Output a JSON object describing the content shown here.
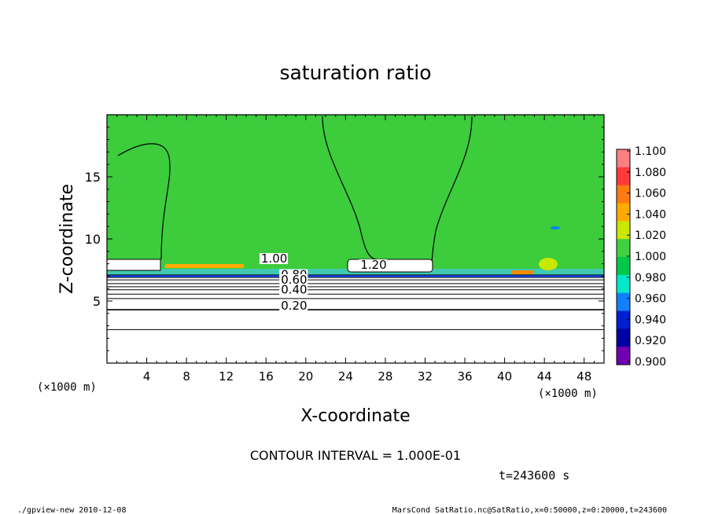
{
  "chart_data": {
    "type": "heatmap",
    "title": "saturation ratio",
    "xlabel": "X-coordinate",
    "ylabel": "Z-coordinate",
    "x_unit": "(×1000 m)",
    "y_unit": "(×1000 m)",
    "xlim": [
      0,
      50
    ],
    "ylim": [
      0,
      20
    ],
    "x_ticks": [
      "4",
      "8",
      "12",
      "16",
      "20",
      "24",
      "28",
      "32",
      "36",
      "40",
      "44",
      "48"
    ],
    "x_tick_values": [
      4,
      8,
      12,
      16,
      20,
      24,
      28,
      32,
      36,
      40,
      44,
      48
    ],
    "y_ticks": [
      "5",
      "10",
      "15"
    ],
    "y_tick_values": [
      5,
      10,
      15
    ],
    "colorbar": {
      "labels": [
        "1.100",
        "1.080",
        "1.060",
        "1.040",
        "1.020",
        "1.000",
        "0.980",
        "0.960",
        "0.940",
        "0.920",
        "0.900"
      ],
      "colors": [
        "#ff7f7f",
        "#ff3a3a",
        "#ff7a10",
        "#ffaa00",
        "#c8e800",
        "#40d040",
        "#00c848",
        "#00e8c8",
        "#1080ff",
        "#0020d0",
        "#0000a0",
        "#7000b0"
      ]
    },
    "background_color": "#3ccc3c",
    "contour_labels": [
      {
        "text": "1.00",
        "x": 15.5,
        "z": 8.1
      },
      {
        "text": "1.20",
        "x": 25.5,
        "z": 7.6
      },
      {
        "text": "0.80",
        "x": 17.5,
        "z": 6.8
      },
      {
        "text": "0.60",
        "x": 17.5,
        "z": 6.4
      },
      {
        "text": "0.40",
        "x": 17.5,
        "z": 5.6
      },
      {
        "text": "0.20",
        "x": 17.5,
        "z": 4.3
      }
    ],
    "contour_levels_z": [
      7.1,
      6.9,
      6.7,
      6.4,
      6.15,
      5.9,
      5.55,
      5.2,
      4.3,
      2.7
    ],
    "contour_interval": "CONTOUR INTERVAL = 1.000E-01",
    "time": "t=243600 s"
  },
  "footer": {
    "left": "./gpview-new   2010-12-08",
    "right": "MarsCond_SatRatio.nc@SatRatio,x=0:50000,z=0:20000,t=243600"
  }
}
